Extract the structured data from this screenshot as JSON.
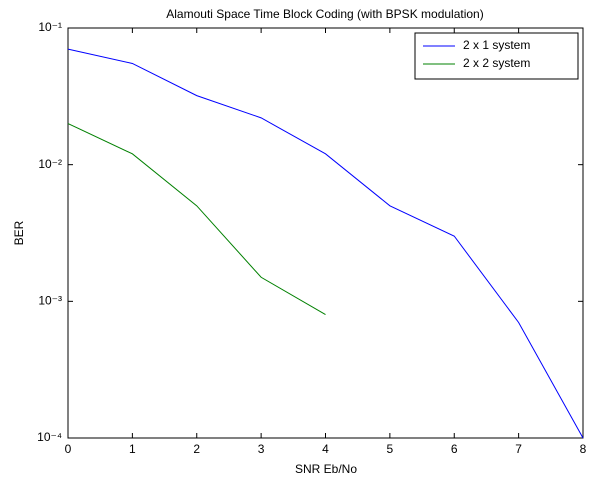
{
  "chart_data": {
    "type": "line",
    "title": "Alamouti Space Time Block Coding (with BPSK modulation)",
    "x_label": "SNR Eb/No",
    "y_label": "BER",
    "x": [
      0,
      1,
      2,
      3,
      4,
      5,
      6,
      7,
      8
    ],
    "series": [
      {
        "name": "2 x 1 system",
        "color": "#0000ff",
        "values": [
          0.07,
          0.055,
          0.032,
          0.022,
          0.012,
          0.005,
          0.003,
          0.0007,
          0.0001
        ]
      },
      {
        "name": "2 x 2 system",
        "color": "#008000",
        "values": [
          0.02,
          0.012,
          0.005,
          0.0015,
          0.0008,
          null,
          null,
          null,
          null
        ]
      }
    ],
    "xlim": [
      0,
      8
    ],
    "xticks": [
      0,
      1,
      2,
      3,
      4,
      5,
      6,
      7,
      8
    ],
    "ylim": [
      0.0001,
      0.1
    ],
    "y_scale": "log",
    "yticks": [
      {
        "value": 0.0001,
        "label": "10⁻⁴"
      },
      {
        "value": 0.001,
        "label": "10⁻³"
      },
      {
        "value": 0.01,
        "label": "10⁻²"
      },
      {
        "value": 0.1,
        "label": "10⁻¹"
      }
    ],
    "grid": false,
    "legend": "upper right"
  }
}
